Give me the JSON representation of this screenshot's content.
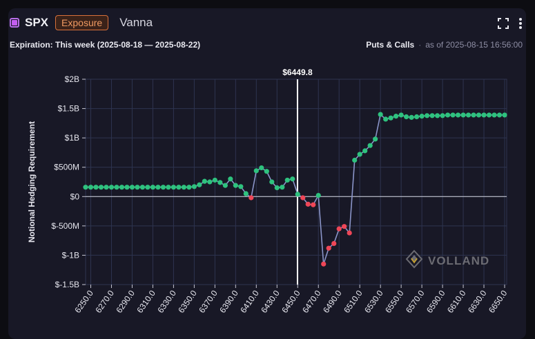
{
  "header": {
    "symbol": "SPX",
    "badge": "Exposure",
    "greek": "Vanna",
    "expiration": "Expiration: This week (2025-08-18 — 2025-08-22)",
    "filter": "Puts & Calls",
    "separator": "·",
    "as_of": "as of 2025-08-15 16:56:00",
    "icons": [
      "fullscreen-icon",
      "more-vertical-icon"
    ]
  },
  "watermark": {
    "text": "VOLLAND"
  },
  "colors": {
    "positive": "#2ec27e",
    "negative": "#ef4657",
    "line": "#8b95c9",
    "spot_line": "#ffffff",
    "grid": "#2e3450",
    "accent": "#c45ef0"
  },
  "chart_data": {
    "type": "line",
    "title": "",
    "xlabel": "",
    "ylabel": "Notional Hedging Requirement",
    "spot": {
      "x": 6449.8,
      "label": "$6449.8"
    },
    "ylim": [
      -1.5,
      2.0
    ],
    "xlim": [
      6245,
      6652
    ],
    "yticks": [
      {
        "value": 2.0,
        "label": "$2B"
      },
      {
        "value": 1.5,
        "label": "$1.5B"
      },
      {
        "value": 1.0,
        "label": "$1B"
      },
      {
        "value": 0.5,
        "label": "$500M"
      },
      {
        "value": 0.0,
        "label": "$0"
      },
      {
        "value": -0.5,
        "label": "$-500M"
      },
      {
        "value": -1.0,
        "label": "$-1B"
      },
      {
        "value": -1.5,
        "label": "$-1.5B"
      }
    ],
    "xticks": [
      "6250.0",
      "6270.0",
      "6290.0",
      "6310.0",
      "6330.0",
      "6350.0",
      "6370.0",
      "6390.0",
      "6410.0",
      "6430.0",
      "6450.0",
      "6470.0",
      "6490.0",
      "6510.0",
      "6530.0",
      "6550.0",
      "6570.0",
      "6590.0",
      "6610.0",
      "6630.0",
      "6650.0"
    ],
    "grid": true,
    "x": [
      6245,
      6250,
      6255,
      6260,
      6265,
      6270,
      6275,
      6280,
      6285,
      6290,
      6295,
      6300,
      6305,
      6310,
      6315,
      6320,
      6325,
      6330,
      6335,
      6340,
      6345,
      6350,
      6355,
      6360,
      6365,
      6370,
      6375,
      6380,
      6385,
      6390,
      6395,
      6400,
      6405,
      6410,
      6415,
      6420,
      6425,
      6430,
      6435,
      6440,
      6445,
      6450,
      6455,
      6460,
      6465,
      6470,
      6475,
      6480,
      6485,
      6490,
      6495,
      6500,
      6505,
      6510,
      6515,
      6520,
      6525,
      6530,
      6535,
      6540,
      6545,
      6550,
      6555,
      6560,
      6565,
      6570,
      6575,
      6580,
      6585,
      6590,
      6595,
      6600,
      6605,
      6610,
      6615,
      6620,
      6625,
      6630,
      6635,
      6640,
      6645,
      6650
    ],
    "series": [
      {
        "values": [
          0.16,
          0.16,
          0.16,
          0.16,
          0.16,
          0.16,
          0.16,
          0.16,
          0.16,
          0.16,
          0.16,
          0.16,
          0.16,
          0.16,
          0.16,
          0.16,
          0.16,
          0.16,
          0.16,
          0.16,
          0.16,
          0.17,
          0.2,
          0.26,
          0.25,
          0.28,
          0.24,
          0.19,
          0.3,
          0.19,
          0.17,
          0.05,
          -0.02,
          0.44,
          0.49,
          0.43,
          0.25,
          0.15,
          0.16,
          0.28,
          0.3,
          0.04,
          -0.02,
          -0.13,
          -0.14,
          0.02,
          -1.15,
          -0.88,
          -0.8,
          -0.55,
          -0.51,
          -0.62,
          0.62,
          0.72,
          0.78,
          0.87,
          0.98,
          1.4,
          1.32,
          1.34,
          1.37,
          1.39,
          1.36,
          1.35,
          1.36,
          1.37,
          1.38,
          1.38,
          1.38,
          1.38,
          1.39,
          1.39,
          1.39,
          1.39,
          1.39,
          1.39,
          1.39,
          1.39,
          1.39,
          1.39,
          1.39,
          1.39
        ]
      }
    ]
  }
}
